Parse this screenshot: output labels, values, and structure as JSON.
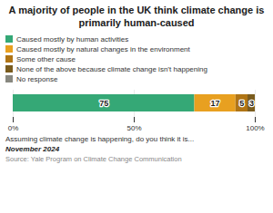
{
  "chart_data": {
    "type": "bar",
    "orientation": "horizontal",
    "stacked": true,
    "title": "A majority of people in the UK think climate change is\nprimarily human-caused",
    "xlabel": "Assuming climate change is happening, do you think it is...",
    "annotations": [
      "November 2024",
      "Source: Yale Program on Climate Change Communication"
    ],
    "categories": [
      null
    ],
    "series": [
      {
        "name": "Caused mostly by human activities",
        "color": "#35a876",
        "values": [
          75
        ]
      },
      {
        "name": "Caused mostly by natural changes in the environment",
        "color": "#e8a020",
        "values": [
          17
        ]
      },
      {
        "name": "Some other cause",
        "color": "#b07515",
        "values": [
          5
        ]
      },
      {
        "name": "None of the above because climate change isn’t happening",
        "color": "#7a5c1e",
        "values": [
          3
        ]
      },
      {
        "name": "No response",
        "color": "#888880",
        "values": [
          null
        ]
      }
    ],
    "xlim": [
      0,
      100
    ],
    "xticks": [
      {
        "value": 0,
        "label": "0%"
      },
      {
        "value": 50,
        "label": "50%"
      },
      {
        "value": 100,
        "label": "100%"
      }
    ],
    "grid": true,
    "data_labels": true,
    "legend": "top"
  }
}
